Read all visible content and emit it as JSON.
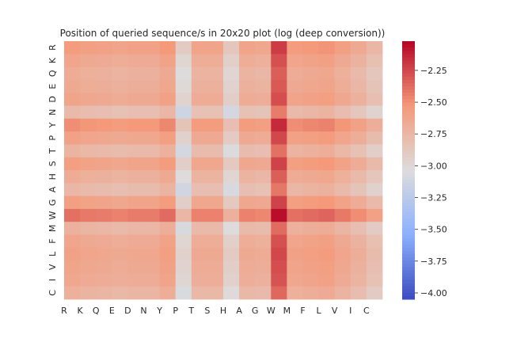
{
  "chart_data": {
    "type": "heatmap",
    "title": "Position of queried sequence/s in 20x20 plot (log (deep conversion))",
    "xlabel": "",
    "ylabel": "",
    "x_categories": [
      "R",
      "K",
      "Q",
      "E",
      "D",
      "N",
      "Y",
      "P",
      "T",
      "S",
      "H",
      "A",
      "G",
      "W",
      "M",
      "F",
      "L",
      "V",
      "I",
      "C"
    ],
    "y_categories": [
      "R",
      "K",
      "Q",
      "E",
      "D",
      "N",
      "Y",
      "P",
      "T",
      "S",
      "H",
      "A",
      "G",
      "W",
      "M",
      "F",
      "L",
      "V",
      "I",
      "C"
    ],
    "x_tick_labels": [
      "R",
      "K",
      "Q",
      "E",
      "D",
      "N",
      "Y",
      "P",
      "T",
      "S",
      "H",
      "A",
      "G",
      "W",
      "M",
      "F",
      "L",
      "V",
      "I",
      "C"
    ],
    "y_tick_labels": [
      "R",
      "K",
      "Q",
      "E",
      "D",
      "N",
      "Y",
      "P",
      "T",
      "S",
      "H",
      "A",
      "G",
      "W",
      "M",
      "F",
      "L",
      "V",
      "I",
      "C"
    ],
    "colorbar": {
      "colormap": "coolwarm",
      "vmin": -4.05,
      "vmax": -2.02,
      "ticks": [
        -2.25,
        -2.5,
        -2.75,
        -3.0,
        -3.25,
        -3.5,
        -3.75,
        -4.0
      ],
      "tick_labels": [
        "−2.25",
        "−2.50",
        "−2.75",
        "−3.00",
        "−3.25",
        "−3.50",
        "−3.75",
        "−4.00"
      ]
    },
    "row_offsets": [
      -0.12,
      -0.05,
      0.0,
      -0.02,
      -0.06,
      0.1,
      -0.18,
      -0.08,
      0.06,
      -0.1,
      0.0,
      0.08,
      -0.1,
      -0.28,
      0.04,
      -0.05,
      -0.08,
      -0.06,
      -0.04,
      0.03
    ],
    "col_offsets": [
      -0.08,
      -0.05,
      -0.04,
      -0.02,
      -0.04,
      -0.04,
      -0.1,
      0.28,
      -0.02,
      -0.02,
      0.24,
      -0.02,
      0.0,
      -0.42,
      -0.08,
      -0.1,
      -0.12,
      -0.05,
      0.02,
      0.12
    ],
    "base_value": -2.75,
    "grid": false
  }
}
